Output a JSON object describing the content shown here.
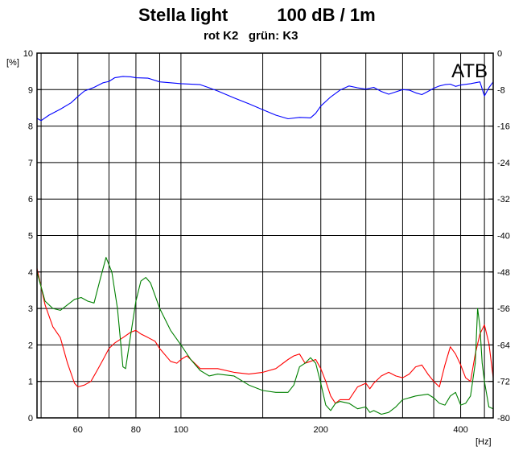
{
  "title": "Stella light          100 dB / 1m",
  "subtitle": "rot K2   grün: K3",
  "chart_data": {
    "type": "line",
    "watermark": "ATB",
    "x_scale": "log",
    "xlim": [
      49,
      470
    ],
    "x_ticks": [
      60,
      80,
      100,
      200,
      400
    ],
    "x_unit": "[Hz]",
    "y_left_unit": "[%]",
    "y_left_lim": [
      0,
      10
    ],
    "y_left_ticks": [
      0,
      1,
      2,
      3,
      4,
      5,
      6,
      7,
      8,
      9,
      10
    ],
    "y_right_lim": [
      -80,
      0
    ],
    "y_right_ticks": [
      0,
      -8,
      -16,
      -24,
      -32,
      -40,
      -48,
      -56,
      -64,
      -72,
      -80
    ],
    "grid": true,
    "series": [
      {
        "name": "",
        "color": "#0000ff",
        "axis": "right",
        "points": [
          [
            49,
            -14.3
          ],
          [
            50,
            -14.8
          ],
          [
            52,
            -13.6
          ],
          [
            55,
            -12.3
          ],
          [
            58,
            -10.9
          ],
          [
            60,
            -9.5
          ],
          [
            62,
            -8.3
          ],
          [
            65,
            -7.5
          ],
          [
            68,
            -6.5
          ],
          [
            70,
            -6.2
          ],
          [
            72,
            -5.4
          ],
          [
            75,
            -5.1
          ],
          [
            78,
            -5.2
          ],
          [
            80,
            -5.4
          ],
          [
            85,
            -5.5
          ],
          [
            90,
            -6.3
          ],
          [
            95,
            -6.5
          ],
          [
            100,
            -6.7
          ],
          [
            110,
            -6.9
          ],
          [
            115,
            -7.6
          ],
          [
            120,
            -8.3
          ],
          [
            130,
            -9.8
          ],
          [
            140,
            -11.1
          ],
          [
            150,
            -12.4
          ],
          [
            160,
            -13.6
          ],
          [
            170,
            -14.4
          ],
          [
            180,
            -14.1
          ],
          [
            190,
            -14.2
          ],
          [
            195,
            -13.2
          ],
          [
            200,
            -11.6
          ],
          [
            210,
            -9.6
          ],
          [
            220,
            -8.1
          ],
          [
            230,
            -7.2
          ],
          [
            240,
            -7.6
          ],
          [
            250,
            -7.9
          ],
          [
            260,
            -7.5
          ],
          [
            270,
            -8.4
          ],
          [
            280,
            -9.0
          ],
          [
            290,
            -8.5
          ],
          [
            300,
            -8.0
          ],
          [
            310,
            -8.1
          ],
          [
            320,
            -8.7
          ],
          [
            330,
            -9.1
          ],
          [
            340,
            -8.4
          ],
          [
            350,
            -7.7
          ],
          [
            360,
            -7.2
          ],
          [
            370,
            -6.9
          ],
          [
            380,
            -6.8
          ],
          [
            390,
            -7.3
          ],
          [
            400,
            -7.0
          ],
          [
            420,
            -6.7
          ],
          [
            440,
            -6.3
          ],
          [
            450,
            -9.4
          ],
          [
            460,
            -7.6
          ],
          [
            470,
            -6.3
          ]
        ]
      },
      {
        "name": "",
        "color": "#ff0000",
        "axis": "left",
        "points": [
          [
            49,
            4.1
          ],
          [
            51,
            3.1
          ],
          [
            53,
            2.5
          ],
          [
            55,
            2.2
          ],
          [
            57,
            1.5
          ],
          [
            59,
            0.95
          ],
          [
            60,
            0.85
          ],
          [
            62,
            0.9
          ],
          [
            64,
            1.0
          ],
          [
            66,
            1.3
          ],
          [
            68,
            1.6
          ],
          [
            70,
            1.9
          ],
          [
            72,
            2.05
          ],
          [
            75,
            2.2
          ],
          [
            78,
            2.35
          ],
          [
            80,
            2.4
          ],
          [
            82,
            2.3
          ],
          [
            85,
            2.2
          ],
          [
            88,
            2.1
          ],
          [
            90,
            1.9
          ],
          [
            95,
            1.55
          ],
          [
            98,
            1.5
          ],
          [
            100,
            1.6
          ],
          [
            103,
            1.7
          ],
          [
            106,
            1.55
          ],
          [
            110,
            1.35
          ],
          [
            120,
            1.35
          ],
          [
            130,
            1.25
          ],
          [
            140,
            1.2
          ],
          [
            150,
            1.25
          ],
          [
            160,
            1.35
          ],
          [
            170,
            1.6
          ],
          [
            175,
            1.7
          ],
          [
            180,
            1.75
          ],
          [
            185,
            1.5
          ],
          [
            190,
            1.55
          ],
          [
            195,
            1.6
          ],
          [
            200,
            1.35
          ],
          [
            205,
            1.0
          ],
          [
            210,
            0.6
          ],
          [
            215,
            0.4
          ],
          [
            220,
            0.5
          ],
          [
            230,
            0.5
          ],
          [
            240,
            0.85
          ],
          [
            250,
            0.95
          ],
          [
            255,
            0.8
          ],
          [
            260,
            0.95
          ],
          [
            270,
            1.15
          ],
          [
            280,
            1.25
          ],
          [
            290,
            1.15
          ],
          [
            300,
            1.1
          ],
          [
            310,
            1.2
          ],
          [
            320,
            1.4
          ],
          [
            330,
            1.45
          ],
          [
            340,
            1.2
          ],
          [
            350,
            1.0
          ],
          [
            360,
            0.85
          ],
          [
            370,
            1.45
          ],
          [
            380,
            1.95
          ],
          [
            390,
            1.75
          ],
          [
            400,
            1.45
          ],
          [
            410,
            1.1
          ],
          [
            420,
            1.0
          ],
          [
            430,
            1.75
          ],
          [
            440,
            2.3
          ],
          [
            450,
            2.55
          ],
          [
            460,
            2.05
          ],
          [
            470,
            1.1
          ]
        ]
      },
      {
        "name": "",
        "color": "#008000",
        "axis": "left",
        "points": [
          [
            49,
            4.0
          ],
          [
            51,
            3.2
          ],
          [
            53,
            3.0
          ],
          [
            55,
            2.95
          ],
          [
            57,
            3.1
          ],
          [
            59,
            3.25
          ],
          [
            61,
            3.3
          ],
          [
            63,
            3.2
          ],
          [
            65,
            3.15
          ],
          [
            67,
            3.8
          ],
          [
            69,
            4.4
          ],
          [
            71,
            4.0
          ],
          [
            73,
            3.0
          ],
          [
            75,
            1.4
          ],
          [
            76,
            1.35
          ],
          [
            78,
            2.3
          ],
          [
            80,
            3.2
          ],
          [
            82,
            3.75
          ],
          [
            84,
            3.85
          ],
          [
            86,
            3.7
          ],
          [
            88,
            3.35
          ],
          [
            90,
            3.0
          ],
          [
            95,
            2.4
          ],
          [
            100,
            2.0
          ],
          [
            105,
            1.6
          ],
          [
            110,
            1.3
          ],
          [
            115,
            1.15
          ],
          [
            120,
            1.2
          ],
          [
            130,
            1.15
          ],
          [
            140,
            0.9
          ],
          [
            150,
            0.75
          ],
          [
            160,
            0.7
          ],
          [
            170,
            0.7
          ],
          [
            175,
            0.9
          ],
          [
            180,
            1.4
          ],
          [
            185,
            1.5
          ],
          [
            190,
            1.65
          ],
          [
            195,
            1.5
          ],
          [
            200,
            0.95
          ],
          [
            205,
            0.35
          ],
          [
            210,
            0.2
          ],
          [
            215,
            0.4
          ],
          [
            220,
            0.45
          ],
          [
            230,
            0.4
          ],
          [
            240,
            0.25
          ],
          [
            250,
            0.3
          ],
          [
            255,
            0.15
          ],
          [
            260,
            0.2
          ],
          [
            270,
            0.1
          ],
          [
            280,
            0.15
          ],
          [
            290,
            0.3
          ],
          [
            300,
            0.5
          ],
          [
            320,
            0.6
          ],
          [
            340,
            0.65
          ],
          [
            350,
            0.55
          ],
          [
            360,
            0.4
          ],
          [
            370,
            0.35
          ],
          [
            380,
            0.6
          ],
          [
            390,
            0.7
          ],
          [
            400,
            0.35
          ],
          [
            410,
            0.4
          ],
          [
            420,
            0.6
          ],
          [
            430,
            1.5
          ],
          [
            435,
            3.0
          ],
          [
            440,
            2.5
          ],
          [
            445,
            1.5
          ],
          [
            450,
            1.0
          ],
          [
            460,
            0.3
          ],
          [
            470,
            0.25
          ]
        ]
      }
    ]
  }
}
